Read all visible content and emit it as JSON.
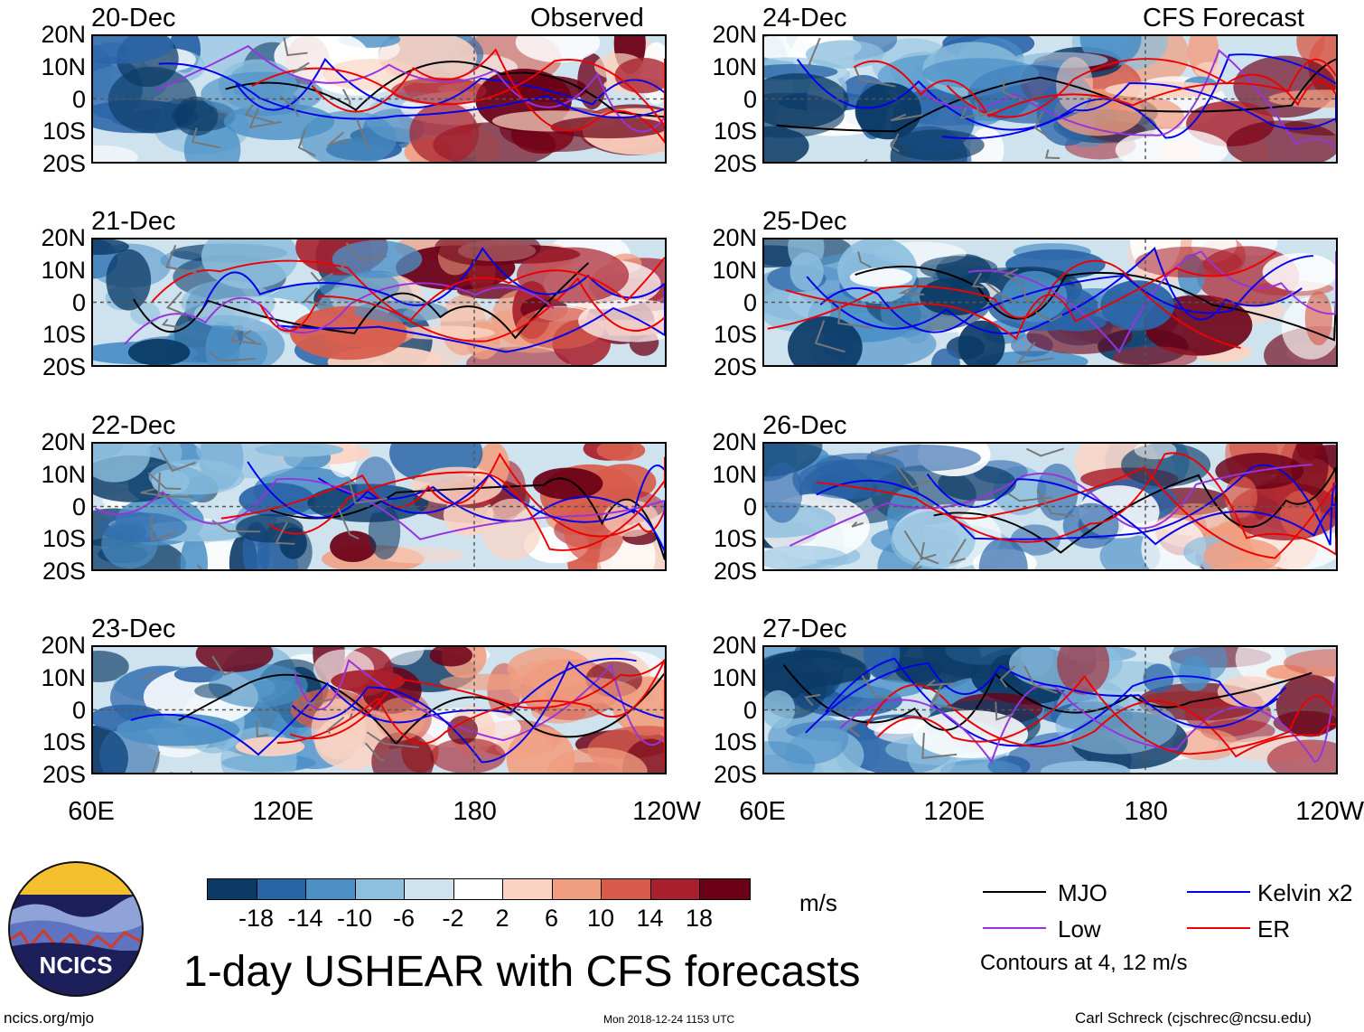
{
  "title": "1-day USHEAR with CFS forecasts",
  "units": "m/s",
  "observed_label": "Observed",
  "forecast_label": "CFS Forecast",
  "panels_observed": [
    "20-Dec",
    "21-Dec",
    "22-Dec",
    "23-Dec"
  ],
  "panels_forecast": [
    "24-Dec",
    "25-Dec",
    "26-Dec",
    "27-Dec"
  ],
  "lat_ticks": [
    "20N",
    "10N",
    "0",
    "10S",
    "20S"
  ],
  "lon_ticks": [
    "60E",
    "120E",
    "180",
    "120W"
  ],
  "colorbar": {
    "labels": [
      "-18",
      "-14",
      "-10",
      "-6",
      "-2",
      "2",
      "6",
      "10",
      "14",
      "18"
    ],
    "colors": [
      "#0b3a66",
      "#2a64a8",
      "#4c90c6",
      "#8dbfde",
      "#cfe3ef",
      "#ffffff",
      "#fbd3c2",
      "#f19e80",
      "#d85c4c",
      "#a8202d",
      "#6b0016"
    ]
  },
  "legend": {
    "mjo": "MJO",
    "kelvin": "Kelvin x2",
    "low": "Low",
    "er": "ER",
    "contours": "Contours at 4, 12 m/s",
    "colors": {
      "mjo": "#000000",
      "kelvin": "#0000ee",
      "low": "#9933dd",
      "er": "#ee0000"
    }
  },
  "logo_text": "NCICS",
  "footer": {
    "url": "ncics.org/mjo",
    "timestamp": "Mon 2018-12-24 1153 UTC",
    "credit": "Carl Schreck (cjschrec@ncsu.edu)"
  },
  "chart_data": {
    "type": "heatmap",
    "title": "1-day USHEAR with CFS forecasts",
    "variable": "USHEAR",
    "units": "m/s",
    "x_range": [
      "60E",
      "120W"
    ],
    "y_range": [
      "20S",
      "20N"
    ],
    "color_levels": [
      -18,
      -14,
      -10,
      -6,
      -2,
      2,
      6,
      10,
      14,
      18
    ],
    "contour_levels": [
      4,
      12
    ],
    "series": [
      {
        "name": "Observed",
        "dates": [
          "20-Dec",
          "21-Dec",
          "22-Dec",
          "23-Dec"
        ]
      },
      {
        "name": "CFS Forecast",
        "dates": [
          "24-Dec",
          "25-Dec",
          "26-Dec",
          "27-Dec"
        ]
      }
    ]
  }
}
